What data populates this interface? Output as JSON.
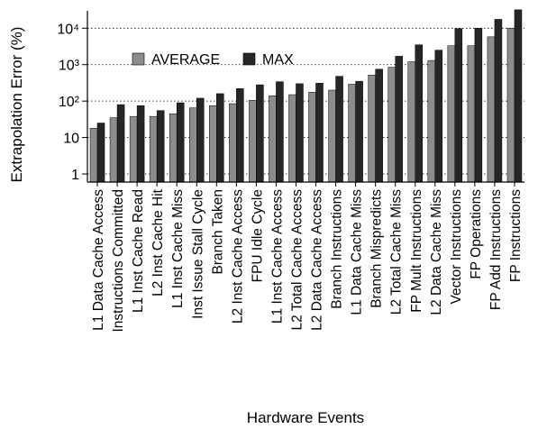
{
  "chart_data": {
    "type": "bar",
    "title": "",
    "xlabel": "Hardware Events",
    "ylabel": "Extrapolation Error (%)",
    "yscale": "log",
    "ylim": [
      0.6,
      30000
    ],
    "grid": "horizontal dotted at major ticks",
    "legend": "top-left, inside plot, horizontal",
    "colors": {
      "AVERAGE": "#8c8c8c",
      "MAX": "#262626"
    },
    "yticks": [
      {
        "value": 1,
        "label": "1"
      },
      {
        "value": 10,
        "label": "10"
      },
      {
        "value": 100,
        "label": "10²"
      },
      {
        "value": 1000,
        "label": "10³"
      },
      {
        "value": 10000,
        "label": "10⁴"
      }
    ],
    "categories": [
      "L1 Data Cache Access",
      "Instructions Committed",
      "L1 Inst Cache Read",
      "L2 Inst Cache Hit",
      "L1 Inst Cache Miss",
      "Inst Issue Stall Cycle",
      "Branch Taken",
      "L2 Inst Cache Access",
      "FPU Idle Cycle",
      "L1 Inst Cache Access",
      "L2 Total Cache Access",
      "L2 Data Cache Access",
      "Branch Instructions",
      "L1 Data Cache Miss",
      "Branch Mispredicts",
      "L2 Total Cache Miss",
      "FP Mult Instructions",
      "L2 Data Cache Miss",
      "Vector Instructions",
      "FP Operations",
      "FP Add Instructions",
      "FP Instructions"
    ],
    "series": [
      {
        "name": "AVERAGE",
        "values": [
          18,
          35,
          38,
          38,
          45,
          65,
          75,
          85,
          105,
          140,
          150,
          175,
          200,
          290,
          520,
          850,
          1200,
          1300,
          3300,
          3300,
          5800,
          10000
        ]
      },
      {
        "name": "MAX",
        "values": [
          25,
          80,
          75,
          55,
          90,
          120,
          160,
          220,
          280,
          340,
          300,
          310,
          480,
          350,
          750,
          1700,
          3500,
          2500,
          9800,
          10000,
          17500,
          32000
        ]
      }
    ]
  }
}
